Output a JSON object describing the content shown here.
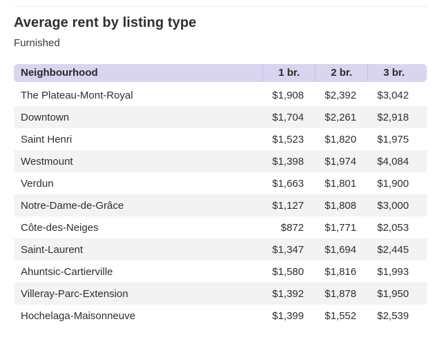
{
  "title": "Average rent by listing type",
  "subtitle": "Furnished",
  "colors": {
    "header_bg": "#d9d4ef",
    "stripe": "#f3f3f3"
  },
  "chart_data": {
    "type": "table",
    "columns": [
      "Neighbourhood",
      "1 br.",
      "2 br.",
      "3 br."
    ],
    "rows": [
      [
        "The Plateau-Mont-Royal",
        "$1,908",
        "$2,392",
        "$3,042"
      ],
      [
        "Downtown",
        "$1,704",
        "$2,261",
        "$2,918"
      ],
      [
        "Saint Henri",
        "$1,523",
        "$1,820",
        "$1,975"
      ],
      [
        "Westmount",
        "$1,398",
        "$1,974",
        "$4,084"
      ],
      [
        "Verdun",
        "$1,663",
        "$1,801",
        "$1,900"
      ],
      [
        "Notre-Dame-de-Grâce",
        "$1,127",
        "$1,808",
        "$3,000"
      ],
      [
        "Côte-des-Neiges",
        "$872",
        "$1,771",
        "$2,053"
      ],
      [
        "Saint-Laurent",
        "$1,347",
        "$1,694",
        "$2,445"
      ],
      [
        "Ahuntsic-Cartierville",
        "$1,580",
        "$1,816",
        "$1,993"
      ],
      [
        "Villeray-Parc-Extension",
        "$1,392",
        "$1,878",
        "$1,950"
      ],
      [
        "Hochelaga-Maisonneuve",
        "$1,399",
        "$1,552",
        "$2,539"
      ]
    ]
  }
}
